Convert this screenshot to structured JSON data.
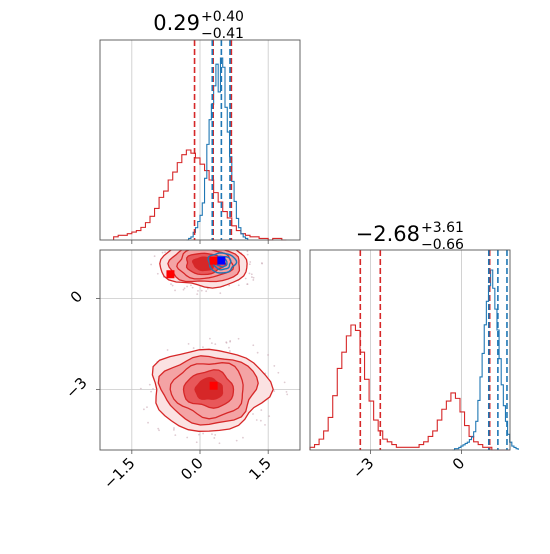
{
  "colors": {
    "red": "#d62728",
    "blue": "#1f77b4",
    "red_light": "#f4a3a4",
    "red_mid": "#e8585a",
    "grid": "#c8c8c8",
    "axis": "#555555",
    "truth_red": "#ff0000",
    "truth_blue": "#0000ff"
  },
  "chart_data": {
    "type": "corner",
    "grid": true,
    "parameters": [
      {
        "summary_value": "0.29",
        "summary_plus": "+0.40",
        "summary_minus": "−0.41",
        "range": [
          -2.2,
          2.2
        ],
        "ticks": [
          -1.5,
          0.0,
          1.5
        ],
        "tick_labels": [
          "−1.5",
          "0.0",
          "1.5"
        ],
        "red_quantiles": [
          -0.12,
          0.29,
          0.69
        ],
        "blue_quantiles": [
          0.27,
          0.47,
          0.66
        ],
        "red_hist": {
          "start": -1.9,
          "step": 0.1,
          "counts": [
            2,
            3,
            3,
            4,
            5,
            6,
            8,
            11,
            15,
            20,
            27,
            31,
            38,
            43,
            49,
            54,
            57,
            55,
            52,
            48,
            44,
            38,
            30,
            24,
            18,
            14,
            9,
            6,
            4,
            3,
            2,
            2,
            1,
            1,
            0,
            1,
            1,
            0
          ]
        },
        "blue_hist": {
          "start": -0.3,
          "step": 0.05,
          "counts": [
            0,
            1,
            2,
            5,
            8,
            12,
            16,
            24,
            40,
            62,
            78,
            88,
            100,
            114,
            96,
            118,
            112,
            86,
            70,
            54,
            38,
            25,
            14,
            8,
            4,
            2,
            1
          ]
        }
      },
      {
        "summary_value": "−2.68",
        "summary_plus": "+3.61",
        "summary_minus": "−0.66",
        "range": [
          -5.0,
          1.6
        ],
        "ticks": [
          -3,
          0
        ],
        "tick_labels": [
          "−3",
          "0"
        ],
        "red_quantiles": [
          -3.34,
          -2.68,
          0.93
        ],
        "blue_quantiles": [
          0.9,
          1.2,
          1.5
        ],
        "red_hist": {
          "start": -5.0,
          "step": 0.15,
          "counts": [
            1,
            2,
            4,
            7,
            12,
            20,
            30,
            36,
            42,
            46,
            44,
            36,
            26,
            18,
            11,
            7,
            4,
            3,
            2,
            1,
            1,
            1,
            1,
            1,
            2,
            3,
            5,
            7,
            11,
            15,
            18,
            21,
            19,
            14,
            9,
            5,
            3,
            2,
            1,
            1,
            0,
            0,
            0,
            0
          ]
        },
        "blue_hist": {
          "start": -0.3,
          "step": 0.07,
          "counts": [
            0,
            1,
            1,
            2,
            3,
            4,
            5,
            6,
            8,
            10,
            14,
            22,
            38,
            56,
            74,
            96,
            114,
            126,
            138,
            124,
            108,
            92,
            70,
            50,
            34,
            22,
            12,
            6,
            3,
            2,
            1
          ]
        }
      }
    ],
    "joint": {
      "red_clusters": [
        {
          "cx": 0.1,
          "cy": 1.15,
          "rx": [
            0.25,
            0.42,
            0.6,
            0.78,
            0.96
          ],
          "ry": [
            0.22,
            0.35,
            0.5,
            0.64,
            0.78
          ]
        },
        {
          "cx": 0.2,
          "cy": -3.0,
          "rx": [
            0.3,
            0.55,
            0.8,
            1.05,
            1.28
          ],
          "ry": [
            0.35,
            0.6,
            0.9,
            1.12,
            1.35
          ]
        }
      ],
      "blue_cluster": {
        "cx": 0.48,
        "cy": 1.18,
        "rx": [
          0.12,
          0.2,
          0.3
        ],
        "ry": [
          0.13,
          0.22,
          0.33
        ]
      },
      "red_markers": [
        {
          "x": -0.65,
          "y": 0.8
        },
        {
          "x": 0.3,
          "y": 1.25
        },
        {
          "x": 0.3,
          "y": -2.88
        }
      ],
      "blue_markers": [
        {
          "x": 0.47,
          "y": 1.25
        }
      ]
    }
  }
}
